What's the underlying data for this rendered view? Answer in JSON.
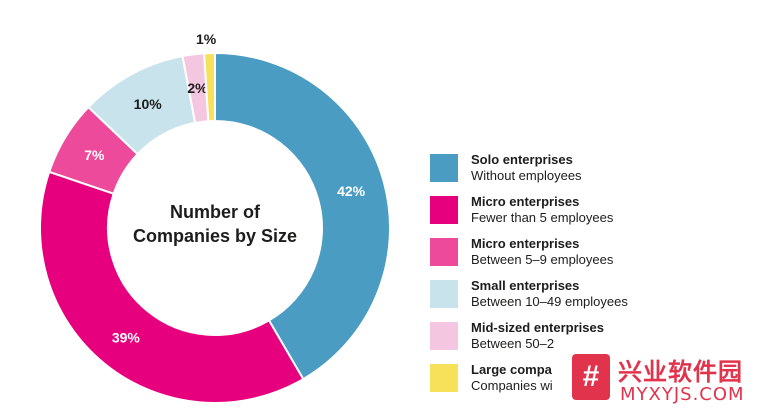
{
  "chart_data": {
    "type": "pie",
    "title": "Number of Companies by Size",
    "slices": [
      {
        "label": "Solo enterprises",
        "description": "Without employees",
        "value": 42,
        "value_label": "42%",
        "color": "#4a9cc2"
      },
      {
        "label": "Micro enterprises",
        "description": "Fewer than 5 employees",
        "value": 39,
        "value_label": "39%",
        "color": "#e6007e"
      },
      {
        "label": "Micro enterprises",
        "description": "Between 5–9 employees",
        "value": 7,
        "value_label": "7%",
        "color": "#ed4a9b"
      },
      {
        "label": "Small enterprises",
        "description": "Between 10–49 employees",
        "value": 10,
        "value_label": "10%",
        "color": "#c9e3ec"
      },
      {
        "label": "Mid-sized enterprises",
        "description": "Between 50–2",
        "value": 2,
        "value_label": "2%",
        "color": "#f5c6df"
      },
      {
        "label": "Large compa",
        "description": "Companies wi",
        "value": 1,
        "value_label": "1%",
        "color": "#f7e15a"
      }
    ],
    "legend": "right"
  },
  "watermark": {
    "logo_glyph": "#",
    "name": "兴业软件园",
    "url": "MYXYJS.COM"
  }
}
